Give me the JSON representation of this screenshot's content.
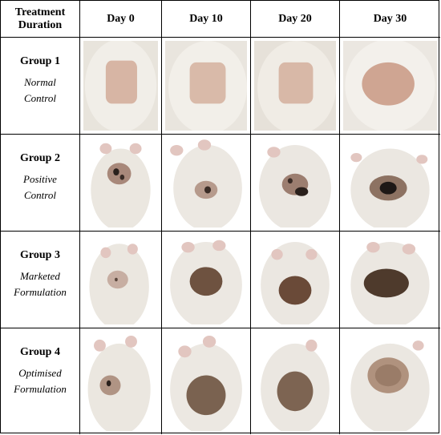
{
  "table": {
    "corner": [
      "Treatment",
      "Duration"
    ],
    "days": [
      "Day 0",
      "Day 10",
      "Day 20",
      "Day 30"
    ],
    "groups": [
      {
        "name": "Group 1",
        "desc": [
          "Normal",
          "Control"
        ]
      },
      {
        "name": "Group 2",
        "desc": [
          "Positive",
          "Control"
        ]
      },
      {
        "name": "Group 3",
        "desc": [
          "Marketed",
          "Formulation"
        ]
      },
      {
        "name": "Group 4",
        "desc": [
          "Optimised",
          "Formulation"
        ]
      }
    ]
  },
  "photos": {
    "group1": [
      "shaved-back-smooth",
      "shaved-back-smooth",
      "shaved-back-smooth",
      "shaved-back-slight-red"
    ],
    "group2": [
      "wound-dark-spots",
      "wound-small-scab",
      "wound-dark-scab",
      "wound-black-scab"
    ],
    "group3": [
      "wound-faint",
      "wound-brown-scab",
      "wound-brown-scab",
      "wound-dark-brown"
    ],
    "group4": [
      "wound-faint-dark",
      "wound-large-brown",
      "wound-large-brown",
      "wound-healing-pink"
    ]
  },
  "colors": {
    "fur": "#ece8e0",
    "skin": "#d9b7a6",
    "scab_brown": "#6b4a36",
    "scab_dark": "#2a201c"
  }
}
